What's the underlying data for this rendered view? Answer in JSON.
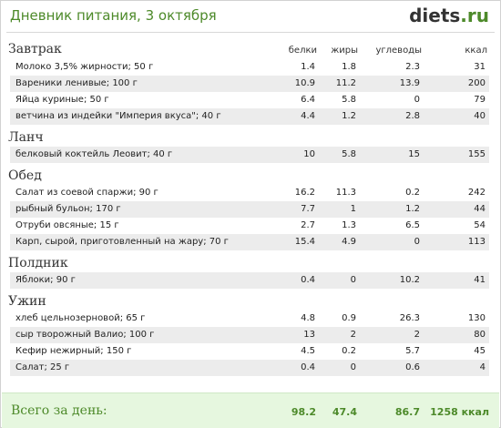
{
  "header": {
    "title": "Дневник питания, 3 октября",
    "logo_main": "diets",
    "logo_suffix": ".ru"
  },
  "columns": {
    "protein": "белки",
    "fat": "жиры",
    "carbs": "углеводы",
    "kcal": "ккал"
  },
  "meals": [
    {
      "name": "Завтрак",
      "items": [
        {
          "name": "Молоко 3,5% жирности; 50 г",
          "p": "1.4",
          "f": "1.8",
          "c": "2.3",
          "k": "31"
        },
        {
          "name": "Вареники ленивые; 100 г",
          "p": "10.9",
          "f": "11.2",
          "c": "13.9",
          "k": "200"
        },
        {
          "name": "Яйца куриные; 50 г",
          "p": "6.4",
          "f": "5.8",
          "c": "0",
          "k": "79"
        },
        {
          "name": "ветчина из индейки \"Империя вкуса\"; 40 г",
          "p": "4.4",
          "f": "1.2",
          "c": "2.8",
          "k": "40"
        }
      ]
    },
    {
      "name": "Ланч",
      "items": [
        {
          "name": "белковый коктейль Леовит; 40 г",
          "p": "10",
          "f": "5.8",
          "c": "15",
          "k": "155"
        }
      ]
    },
    {
      "name": "Обед",
      "items": [
        {
          "name": "Салат из соевой спаржи; 90 г",
          "p": "16.2",
          "f": "11.3",
          "c": "0.2",
          "k": "242"
        },
        {
          "name": "рыбный бульон; 170 г",
          "p": "7.7",
          "f": "1",
          "c": "1.2",
          "k": "44"
        },
        {
          "name": "Отруби овсяные; 15 г",
          "p": "2.7",
          "f": "1.3",
          "c": "6.5",
          "k": "54"
        },
        {
          "name": "Карп, сырой, приготовленный на жару; 70 г",
          "p": "15.4",
          "f": "4.9",
          "c": "0",
          "k": "113"
        }
      ]
    },
    {
      "name": "Полдник",
      "items": [
        {
          "name": "Яблоки; 90 г",
          "p": "0.4",
          "f": "0",
          "c": "10.2",
          "k": "41"
        }
      ]
    },
    {
      "name": "Ужин",
      "items": [
        {
          "name": "хлеб цельнозерновой; 65 г",
          "p": "4.8",
          "f": "0.9",
          "c": "26.3",
          "k": "130"
        },
        {
          "name": "сыр творожный Валио; 100 г",
          "p": "13",
          "f": "2",
          "c": "2",
          "k": "80"
        },
        {
          "name": "Кефир нежирный; 150 г",
          "p": "4.5",
          "f": "0.2",
          "c": "5.7",
          "k": "45"
        },
        {
          "name": "Салат; 25 г",
          "p": "0.4",
          "f": "0",
          "c": "0.6",
          "k": "4"
        }
      ]
    }
  ],
  "totals": {
    "label": "Всего за день:",
    "p": "98.2",
    "f": "47.4",
    "c": "86.7",
    "k": "1258 ккал"
  },
  "colors": {
    "accent": "#4d8a2a",
    "footer_bg": "#e6f7df",
    "row_alt": "#ececec"
  }
}
